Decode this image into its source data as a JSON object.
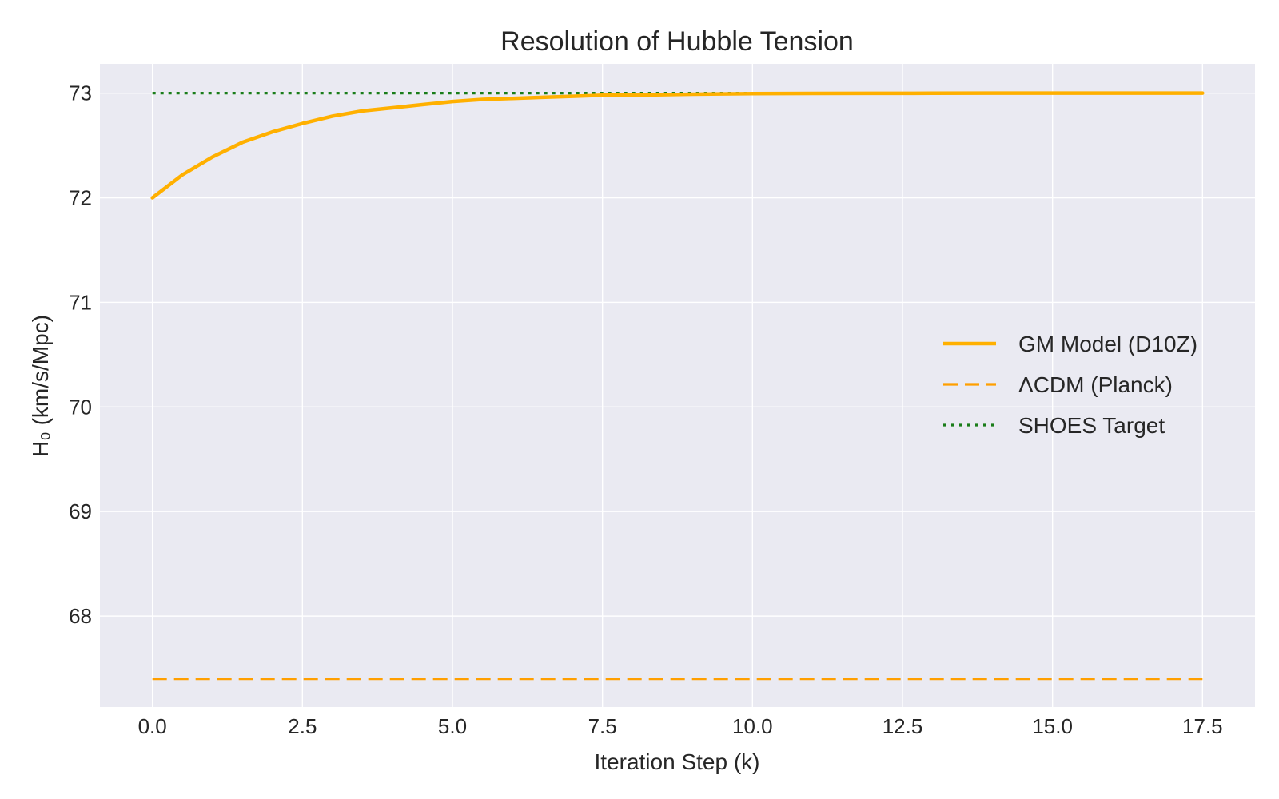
{
  "chart_data": {
    "type": "line",
    "title": "Resolution of Hubble Tension",
    "xlabel": "Iteration Step (k)",
    "ylabel": "H₀ (km/s/Mpc)",
    "xlim": [
      -0.875,
      18.375
    ],
    "ylim": [
      67.13,
      73.28
    ],
    "x_ticks": [
      0.0,
      2.5,
      5.0,
      7.5,
      10.0,
      12.5,
      15.0,
      17.5
    ],
    "x_tick_labels": [
      "0.0",
      "2.5",
      "5.0",
      "7.5",
      "10.0",
      "12.5",
      "15.0",
      "17.5"
    ],
    "y_ticks": [
      68,
      69,
      70,
      71,
      72,
      73
    ],
    "y_tick_labels": [
      "68",
      "69",
      "70",
      "71",
      "72",
      "73"
    ],
    "grid": true,
    "legend_position": "center-right",
    "background_color": "#eaeaf2",
    "series": [
      {
        "name": "GM Model (D10Z)",
        "style": "solid",
        "color": "#ffb000",
        "x": [
          0,
          0.5,
          1,
          1.5,
          2,
          2.5,
          3,
          3.5,
          4,
          4.5,
          5,
          5.5,
          6,
          6.5,
          7,
          7.5,
          8,
          9,
          10,
          11,
          12,
          13,
          14,
          15,
          16,
          17,
          17.5
        ],
        "y": [
          72.0,
          72.22,
          72.39,
          72.53,
          72.63,
          72.71,
          72.78,
          72.83,
          72.86,
          72.89,
          72.92,
          72.94,
          72.95,
          72.96,
          72.97,
          72.98,
          72.98,
          72.99,
          72.995,
          72.997,
          72.998,
          72.999,
          73.0,
          73.0,
          73.0,
          73.0,
          73.0
        ]
      },
      {
        "name": "ΛCDM (Planck)",
        "style": "dashed",
        "color": "#ff9f00",
        "x": [
          0,
          17.5
        ],
        "y": [
          67.4,
          67.4
        ]
      },
      {
        "name": "SHOES Target",
        "style": "dotted",
        "color": "#1a7d1a",
        "x": [
          0,
          17.5
        ],
        "y": [
          73.0,
          73.0
        ]
      }
    ]
  }
}
